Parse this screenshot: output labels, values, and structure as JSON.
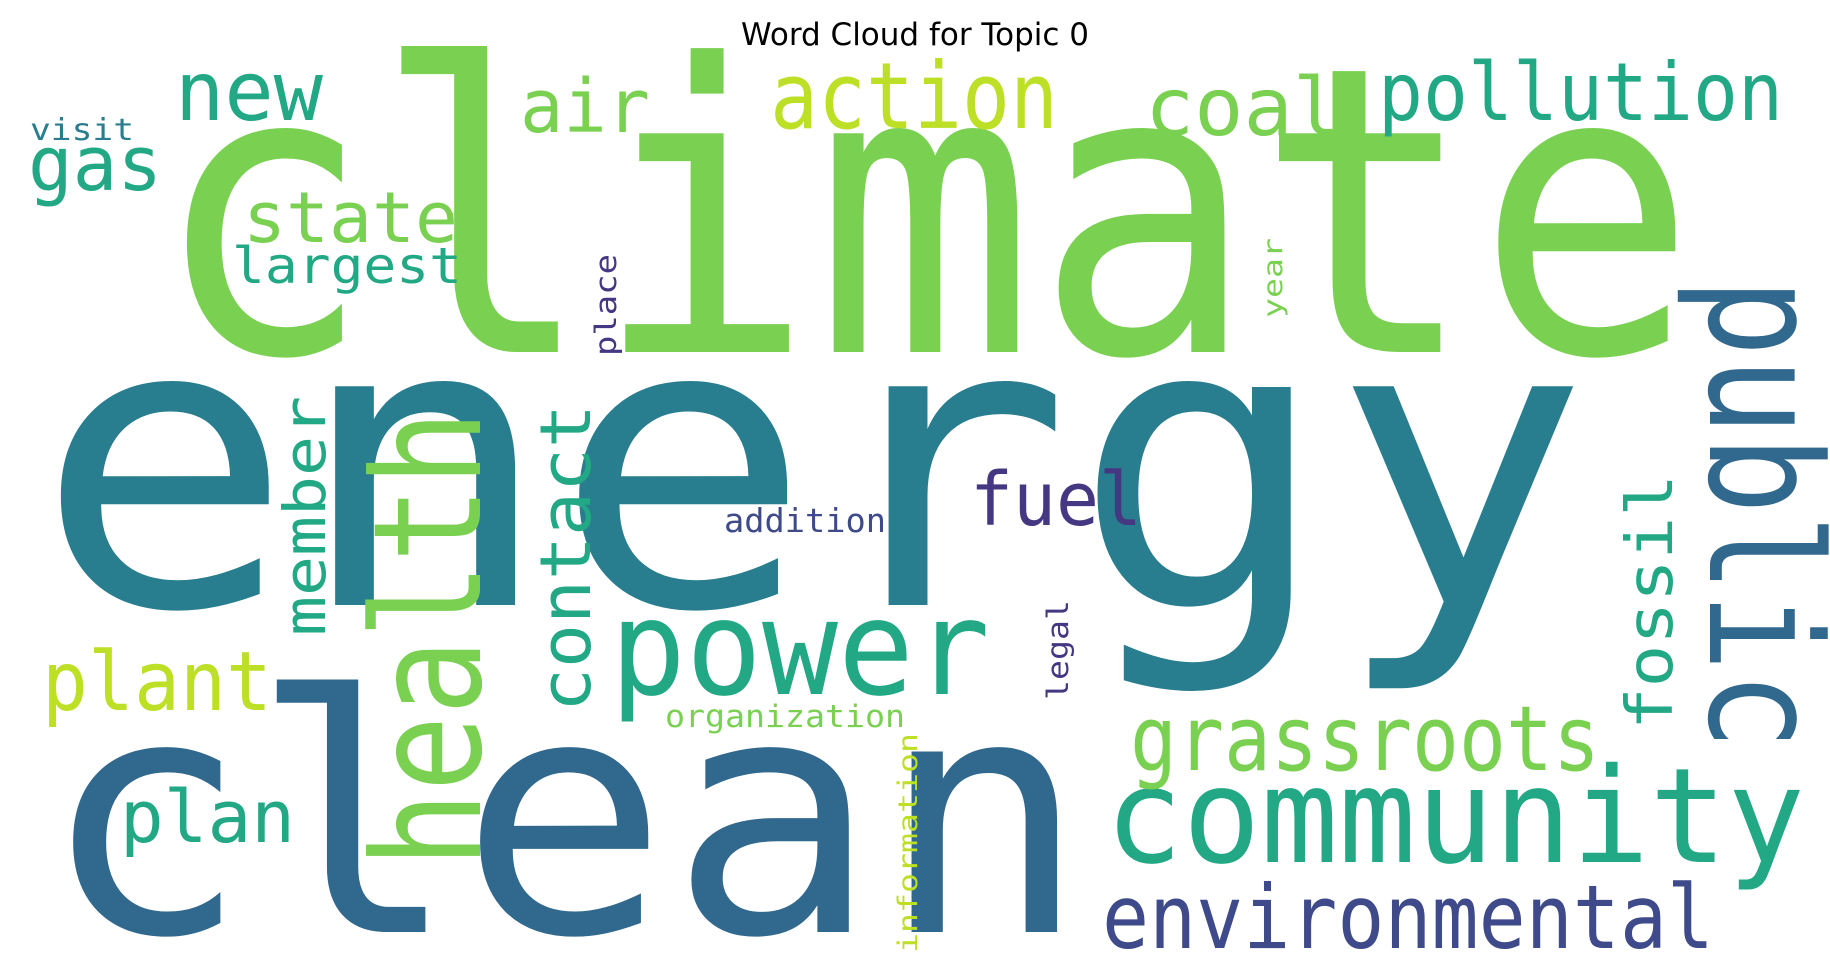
{
  "title": "Word Cloud for Topic 0",
  "palette": {
    "purple": "#453781",
    "indigo": "#3e4a89",
    "blue": "#31688e",
    "teal": "#287d8e",
    "green": "#22a884",
    "light-green": "#7ad151",
    "yellow-green": "#bddf26"
  },
  "words": [
    {
      "text": "climate"
    },
    {
      "text": "energy"
    },
    {
      "text": "clean"
    },
    {
      "text": "public"
    },
    {
      "text": "health"
    },
    {
      "text": "power"
    },
    {
      "text": "community"
    },
    {
      "text": "environmental"
    },
    {
      "text": "grassroots"
    },
    {
      "text": "action"
    },
    {
      "text": "pollution"
    },
    {
      "text": "coal"
    },
    {
      "text": "new"
    },
    {
      "text": "air"
    },
    {
      "text": "gas"
    },
    {
      "text": "state"
    },
    {
      "text": "largest"
    },
    {
      "text": "member"
    },
    {
      "text": "contact"
    },
    {
      "text": "fuel"
    },
    {
      "text": "fossil"
    },
    {
      "text": "plant"
    },
    {
      "text": "plan"
    },
    {
      "text": "addition"
    },
    {
      "text": "organization"
    },
    {
      "text": "information"
    },
    {
      "text": "legal"
    },
    {
      "text": "place"
    },
    {
      "text": "year"
    },
    {
      "text": "visit"
    }
  ]
}
